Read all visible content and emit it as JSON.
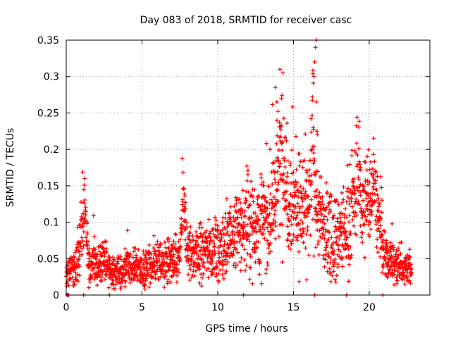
{
  "chart_data": {
    "type": "scatter",
    "title": "Day 083 of 2018, SRMTID for receiver casc",
    "xlabel": "GPS time / hours",
    "ylabel": "SRMTID / TECUs",
    "xlim": [
      0,
      24
    ],
    "ylim": [
      0,
      0.35
    ],
    "x_ticks": [
      0,
      5,
      10,
      15,
      20
    ],
    "x_tick_labels": [
      "0",
      "5",
      "10",
      "15",
      "20"
    ],
    "y_ticks": [
      0,
      0.05,
      0.1,
      0.15,
      0.2,
      0.25,
      0.3,
      0.35
    ],
    "y_tick_labels": [
      "0",
      "0.05",
      "0.1",
      "0.15",
      "0.2",
      "0.25",
      "0.3",
      "0.35"
    ],
    "grid": true,
    "marker": "+",
    "color": "#ff0000",
    "baseline_points_x": [
      0.05,
      0.1,
      0.15,
      1.15,
      2.85,
      11.7,
      16.4,
      18.5,
      20.9
    ],
    "envelope": {
      "description": "Approximate local mean of scattered SRMTID samples versus GPS hour",
      "x": [
        0,
        0.5,
        0.8,
        1.0,
        1.2,
        1.5,
        2.0,
        2.5,
        3.0,
        3.5,
        4.0,
        4.5,
        5.0,
        5.5,
        6.0,
        6.5,
        7.0,
        7.5,
        7.7,
        8.0,
        8.5,
        9.0,
        9.5,
        10.0,
        10.5,
        11.0,
        11.5,
        12.0,
        12.5,
        13.0,
        13.5,
        14.0,
        14.3,
        14.5,
        15.0,
        15.5,
        16.0,
        16.3,
        16.5,
        17.0,
        17.5,
        18.0,
        18.5,
        19.0,
        19.3,
        19.5,
        20.0,
        20.3,
        20.5,
        20.8,
        21.0,
        21.3,
        21.5,
        22.0,
        22.5,
        22.8
      ],
      "mean": [
        0.03,
        0.035,
        0.05,
        0.09,
        0.12,
        0.04,
        0.04,
        0.045,
        0.03,
        0.03,
        0.035,
        0.04,
        0.035,
        0.04,
        0.045,
        0.045,
        0.045,
        0.05,
        0.13,
        0.06,
        0.055,
        0.06,
        0.065,
        0.06,
        0.07,
        0.08,
        0.09,
        0.1,
        0.1,
        0.1,
        0.11,
        0.16,
        0.2,
        0.15,
        0.13,
        0.12,
        0.11,
        0.2,
        0.13,
        0.09,
        0.085,
        0.08,
        0.09,
        0.13,
        0.17,
        0.12,
        0.13,
        0.17,
        0.12,
        0.08,
        0.05,
        0.05,
        0.045,
        0.04,
        0.04,
        0.04
      ],
      "spread": [
        0.012,
        0.012,
        0.02,
        0.025,
        0.02,
        0.015,
        0.015,
        0.015,
        0.012,
        0.012,
        0.012,
        0.012,
        0.012,
        0.015,
        0.015,
        0.015,
        0.015,
        0.015,
        0.025,
        0.02,
        0.02,
        0.02,
        0.02,
        0.02,
        0.025,
        0.025,
        0.03,
        0.03,
        0.035,
        0.035,
        0.035,
        0.045,
        0.05,
        0.045,
        0.04,
        0.035,
        0.035,
        0.06,
        0.04,
        0.03,
        0.03,
        0.03,
        0.03,
        0.035,
        0.035,
        0.03,
        0.035,
        0.03,
        0.03,
        0.025,
        0.015,
        0.015,
        0.015,
        0.015,
        0.015,
        0.012
      ]
    },
    "peaks": [
      {
        "x": 14.1,
        "y": 0.31
      },
      {
        "x": 14.3,
        "y": 0.305
      },
      {
        "x": 16.5,
        "y": 0.35
      },
      {
        "x": 16.45,
        "y": 0.34
      },
      {
        "x": 16.4,
        "y": 0.32
      },
      {
        "x": 16.35,
        "y": 0.3
      },
      {
        "x": 16.5,
        "y": 0.265
      },
      {
        "x": 13.8,
        "y": 0.285
      },
      {
        "x": 13.9,
        "y": 0.265
      },
      {
        "x": 14.2,
        "y": 0.27
      },
      {
        "x": 16.3,
        "y": 0.23
      },
      {
        "x": 16.55,
        "y": 0.225
      }
    ]
  }
}
